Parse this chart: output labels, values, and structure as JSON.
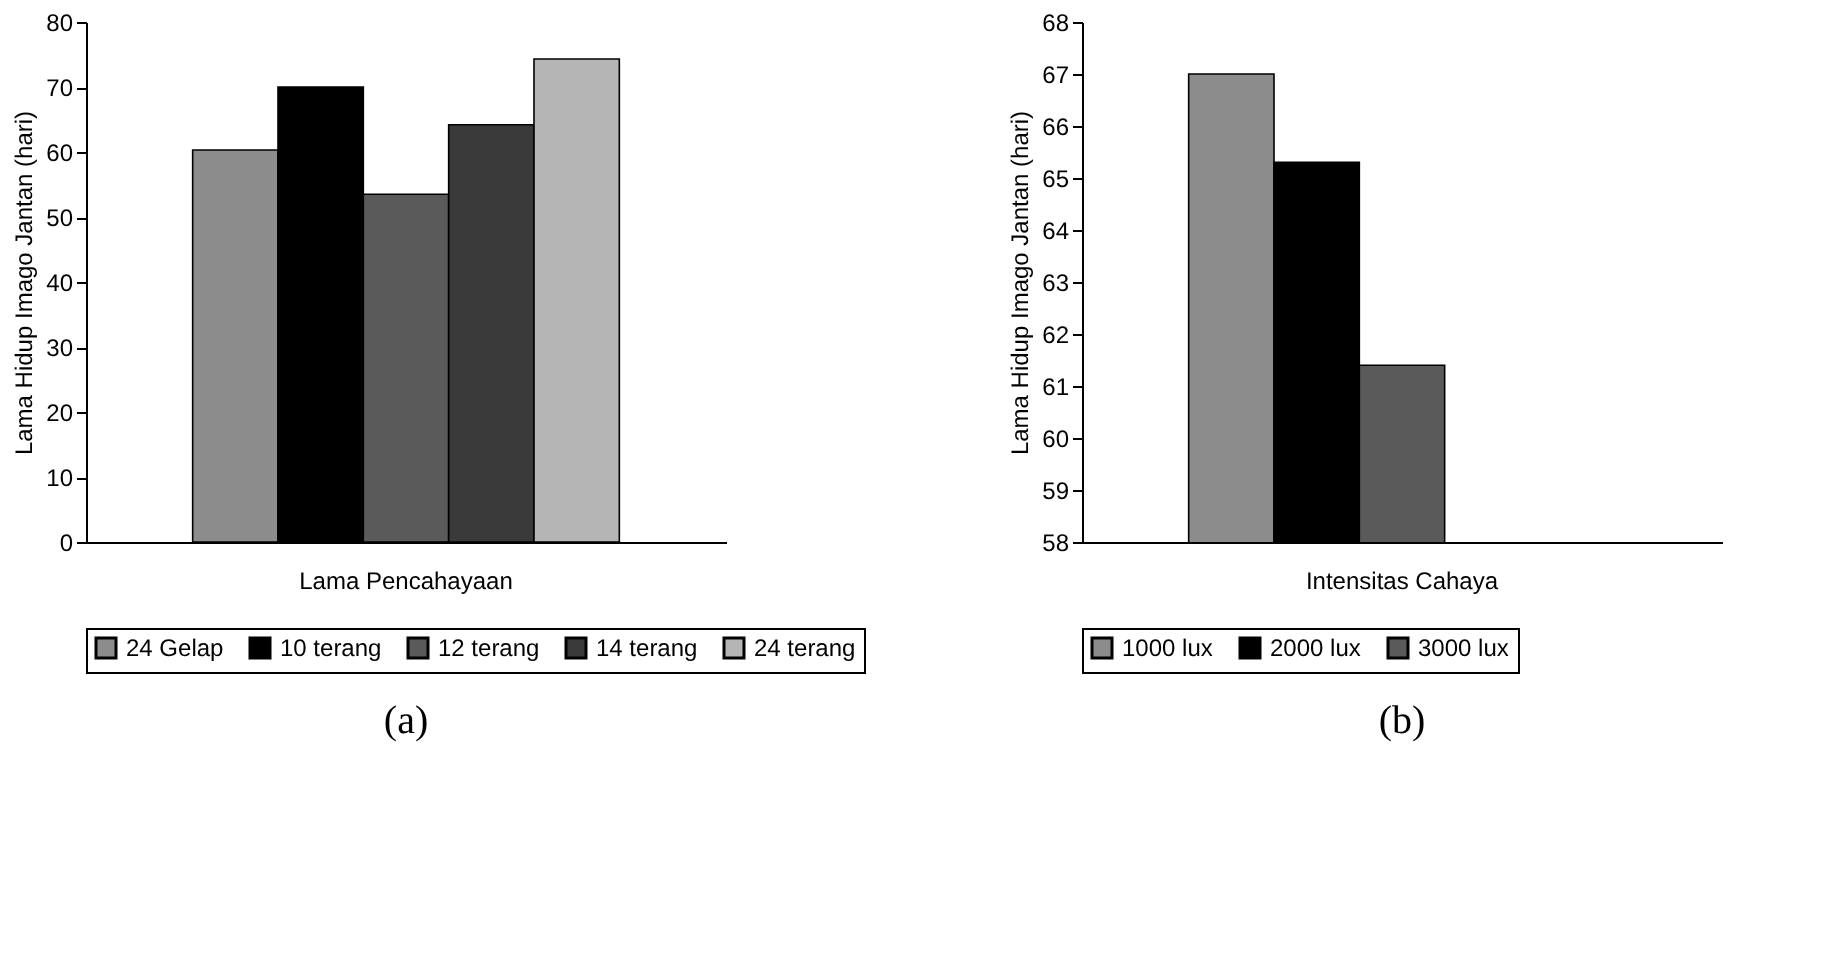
{
  "chart_data": [
    {
      "type": "bar",
      "categories": [
        "Lama Pencahayaan"
      ],
      "ylabel": "Lama Hidup Imago Jantan (hari)",
      "ylim": [
        0,
        80
      ],
      "yticks": [
        0,
        10,
        20,
        30,
        40,
        50,
        60,
        70,
        80
      ],
      "grid": false,
      "legend": "bottom",
      "annotations": [
        "(a)"
      ],
      "series": [
        {
          "name": "24 Gelap",
          "color": "#8c8c8c",
          "values": [
            60.3
          ]
        },
        {
          "name": "10 terang",
          "color": "#000000",
          "values": [
            70
          ]
        },
        {
          "name": "12 terang",
          "color": "#5a5a5a",
          "values": [
            53.5
          ]
        },
        {
          "name": "14 terang",
          "color": "#3a3a3a",
          "values": [
            64.2
          ]
        },
        {
          "name": "24 terang",
          "color": "#b5b5b5",
          "values": [
            74.3
          ]
        }
      ]
    },
    {
      "type": "bar",
      "categories": [
        "Intensitas Cahaya"
      ],
      "ylabel": "Lama Hidup Imago Jantan (hari)",
      "ylim": [
        58,
        68
      ],
      "yticks": [
        58,
        59,
        60,
        61,
        62,
        63,
        64,
        65,
        66,
        67,
        68
      ],
      "grid": false,
      "legend": "bottom",
      "annotations": [
        "(b)"
      ],
      "series": [
        {
          "name": "1000 lux",
          "color": "#8c8c8c",
          "values": [
            67.0
          ]
        },
        {
          "name": "2000 lux",
          "color": "#000000",
          "values": [
            65.3
          ]
        },
        {
          "name": "3000 lux",
          "color": "#5a5a5a",
          "values": [
            61.4
          ]
        }
      ]
    }
  ]
}
